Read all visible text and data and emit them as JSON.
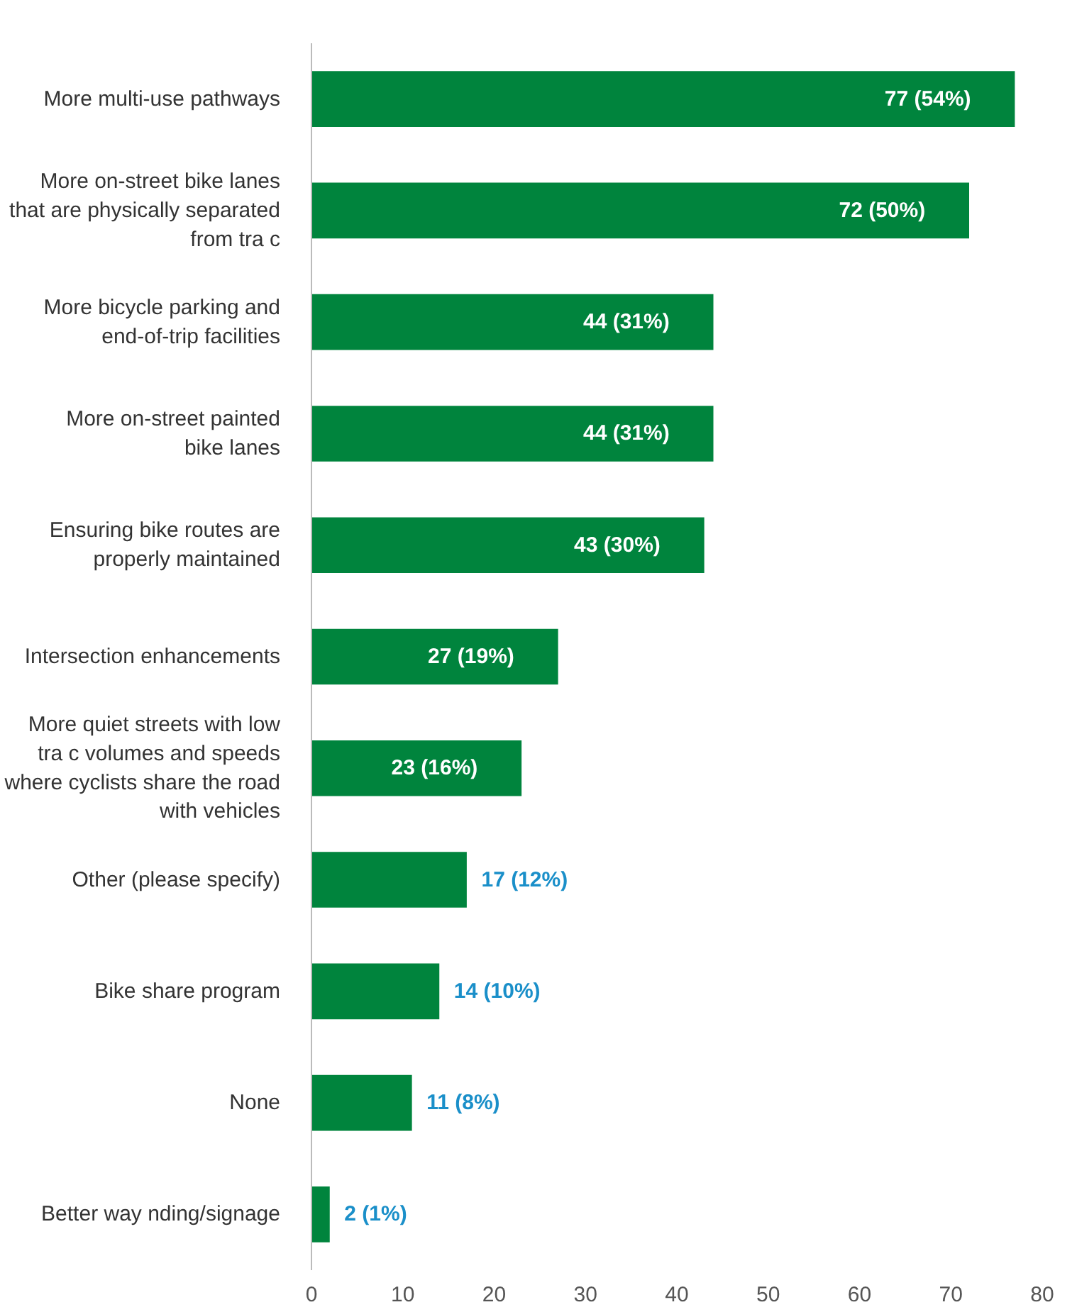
{
  "chart_data": {
    "type": "bar",
    "orientation": "horizontal",
    "categories": [
      "More multi-use pathways",
      "More on-street bike lanes\nthat are physically separated\nfrom tra c",
      "More bicycle parking and\nend-of-trip facilities",
      "More on-street painted\nbike lanes",
      "Ensuring bike routes are\nproperly maintained",
      "Intersection enhancements",
      "More quiet streets with low\ntra c volumes and speeds\nwhere cyclists share the road\nwith vehicles",
      "Other (please specify)",
      "Bike share program",
      "None",
      "Better way nding/signage"
    ],
    "values": [
      77,
      72,
      44,
      44,
      43,
      27,
      23,
      17,
      14,
      11,
      2
    ],
    "value_labels": [
      "77 (54%)",
      "72 (50%)",
      "44 (31%)",
      "44 (31%)",
      "43 (30%)",
      "27 (19%)",
      "23 (16%)",
      "17 (12%)",
      "14 (10%)",
      "11 (8%)",
      "2 (1%)"
    ],
    "color": "#00843d",
    "xlim": [
      0,
      80
    ],
    "xticks": [
      0,
      10,
      20,
      30,
      40,
      50,
      60,
      70,
      80
    ],
    "grid": false
  }
}
